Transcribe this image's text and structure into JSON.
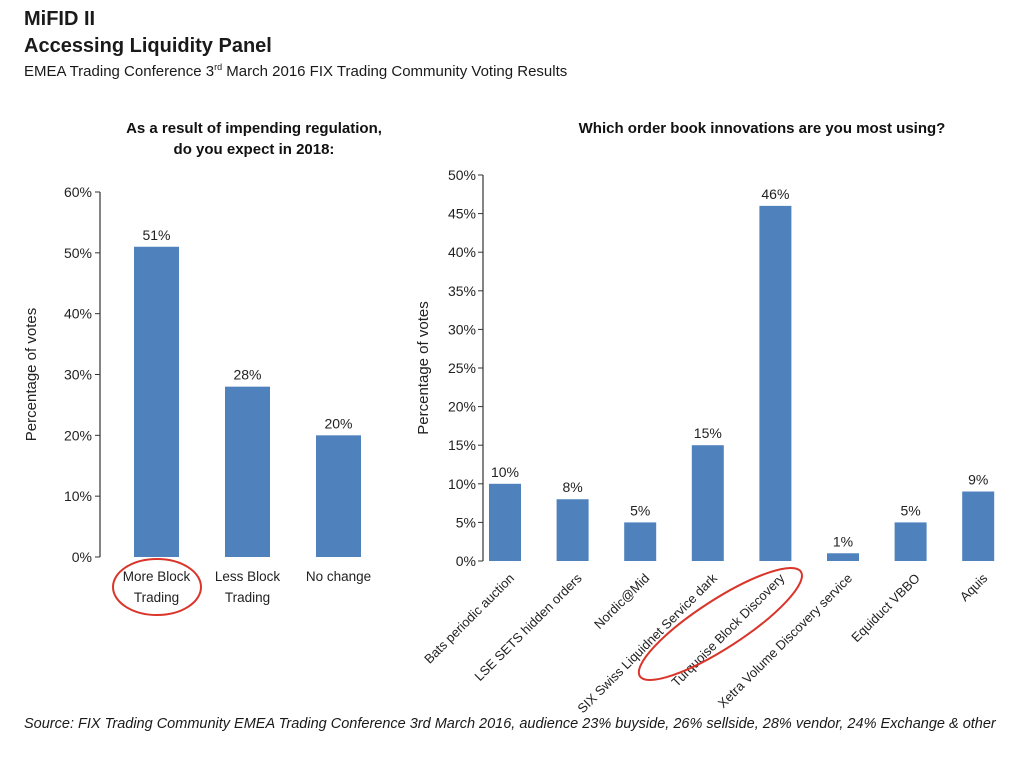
{
  "header": {
    "line1": "MiFID II",
    "line2": "Accessing Liquidity Panel",
    "subtitle_pre": "EMEA Trading Conference 3",
    "subtitle_sup": "rd",
    "subtitle_post": " March 2016 FIX Trading Community Voting Results"
  },
  "source": "Source: FIX Trading Community EMEA Trading Conference 3rd March 2016, audience 23% buyside, 26% sellside, 28% vendor, 24% Exchange & other",
  "colors": {
    "bar": "#4f81bd",
    "highlight": "#d9352a",
    "axis": "#333333"
  },
  "chart_data": [
    {
      "type": "bar",
      "title_lines": [
        "As a result of impending regulation,",
        "do you expect in 2018:"
      ],
      "ylabel": "Percentage of votes",
      "xlabel": "",
      "ylim": [
        0,
        60
      ],
      "yticks": [
        0,
        10,
        20,
        30,
        40,
        50,
        60
      ],
      "ytick_labels": [
        "0%",
        "10%",
        "20%",
        "30%",
        "40%",
        "50%",
        "60%"
      ],
      "categories": [
        [
          "More Block",
          "Trading"
        ],
        [
          "Less Block",
          "Trading"
        ],
        [
          "No change"
        ]
      ],
      "values": [
        51,
        28,
        20
      ],
      "data_labels": [
        "51%",
        "28%",
        "20%"
      ],
      "highlighted": [
        0
      ],
      "grid": false
    },
    {
      "type": "bar",
      "title_lines": [
        "Which order book innovations are you most using?"
      ],
      "ylabel": "Percentage of votes",
      "xlabel": "",
      "ylim": [
        0,
        50
      ],
      "yticks": [
        0,
        5,
        10,
        15,
        20,
        25,
        30,
        35,
        40,
        45,
        50
      ],
      "ytick_labels": [
        "0%",
        "5%",
        "10%",
        "15%",
        "20%",
        "25%",
        "30%",
        "35%",
        "40%",
        "45%",
        "50%"
      ],
      "categories": [
        "Bats periodic auction",
        "LSE SETS hidden orders",
        "Nordic@Mid",
        "SIX Swiss Liquidnet Service dark",
        "Turquoise Block Discovery",
        "Xetra Volume Discovery service",
        "Equiduct VBBO",
        "Aquis"
      ],
      "values": [
        10,
        8,
        5,
        15,
        46,
        1,
        5,
        9
      ],
      "data_labels": [
        "10%",
        "8%",
        "5%",
        "15%",
        "46%",
        "1%",
        "5%",
        "9%"
      ],
      "highlighted": [
        4
      ],
      "grid": false
    }
  ]
}
